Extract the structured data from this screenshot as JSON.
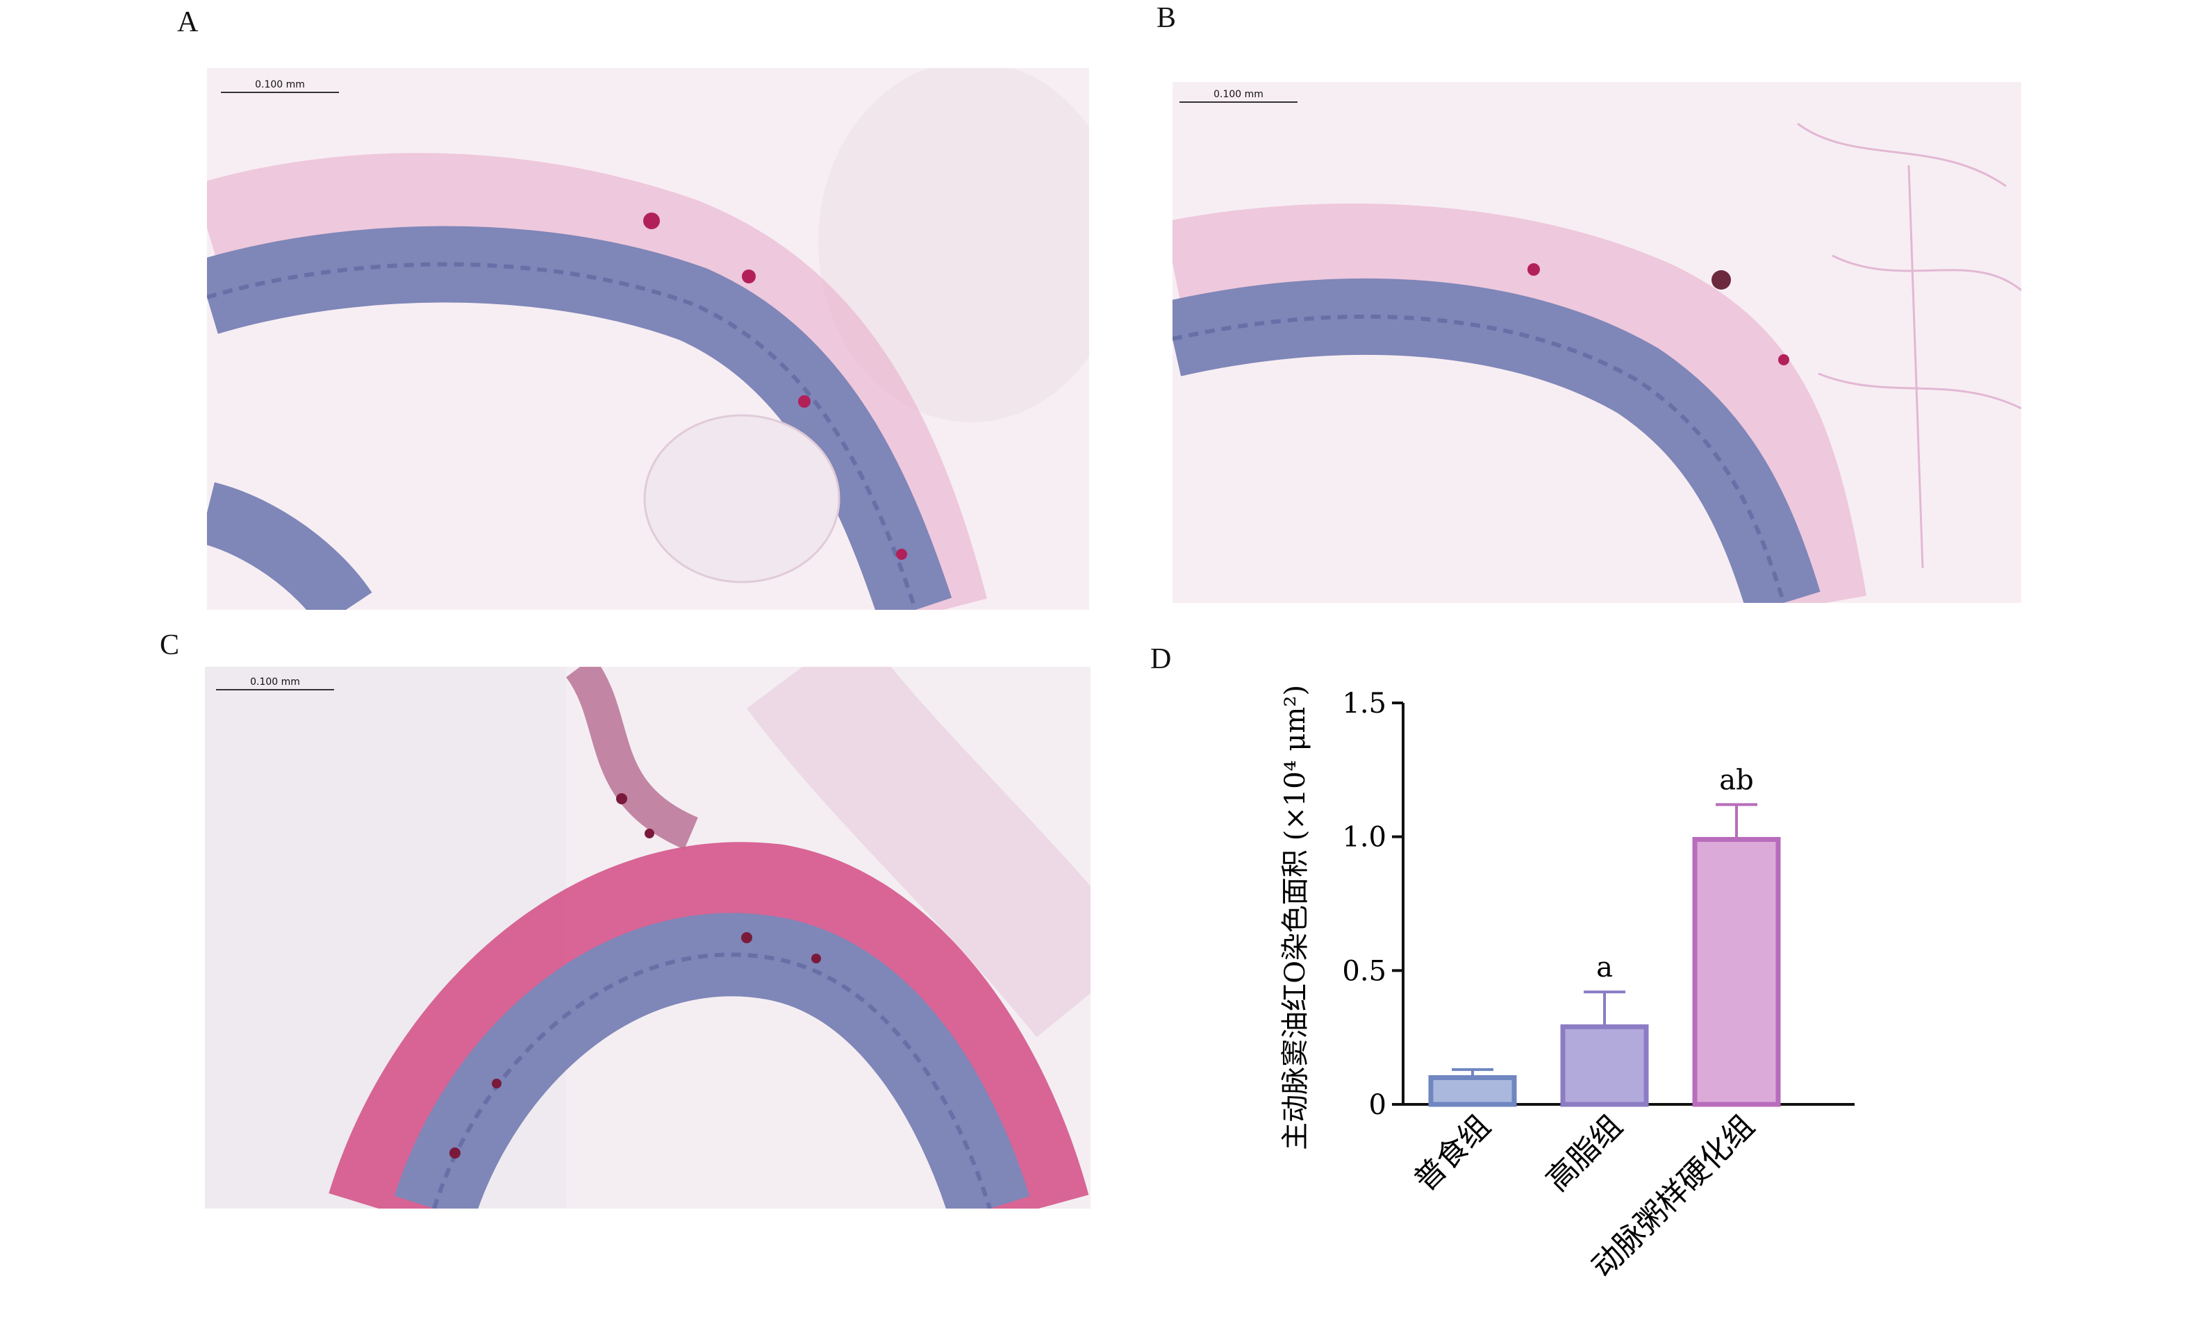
{
  "panels": {
    "a": {
      "label": "A",
      "scale_bar": "0.100 mm"
    },
    "b": {
      "label": "B",
      "scale_bar": "0.100 mm"
    },
    "c": {
      "label": "C",
      "scale_bar": "0.100 mm"
    },
    "d": {
      "label": "D"
    }
  },
  "chart_data": {
    "type": "bar",
    "categories": [
      "普食组",
      "高脂组",
      "动脉粥样硬化组"
    ],
    "values": [
      0.1,
      0.29,
      0.99
    ],
    "errors": [
      0.03,
      0.13,
      0.13
    ],
    "annotations": [
      "",
      "a",
      "ab"
    ],
    "ylabel": "主动脉窦油红O染色面积 (×10⁴ μm²)",
    "yticks": [
      "0",
      "0.5",
      "1.0",
      "1.5"
    ],
    "ylim": [
      0,
      1.5
    ],
    "bar_fill": [
      "#a9b8dc",
      "#b3aadc",
      "#dcaad8"
    ],
    "bar_stroke": [
      "#6f86c1",
      "#8c7cc4",
      "#b86cbc"
    ]
  }
}
